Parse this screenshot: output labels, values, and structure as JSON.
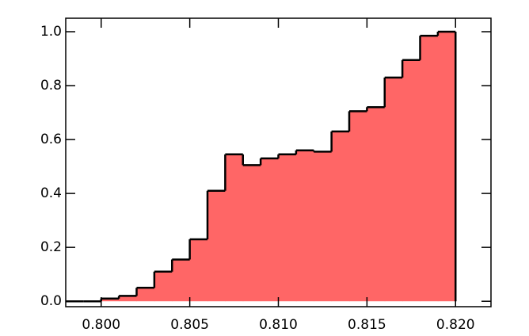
{
  "chart_data": {
    "type": "histogram",
    "color": "#ff6666",
    "edgecolor": "#000000",
    "bins": [
      0.798,
      0.799,
      0.8,
      0.801,
      0.802,
      0.803,
      0.804,
      0.805,
      0.806,
      0.807,
      0.808,
      0.809,
      0.81,
      0.811,
      0.812,
      0.813,
      0.814,
      0.815,
      0.816,
      0.817,
      0.818,
      0.819,
      0.82
    ],
    "values": [
      0.0,
      0.0,
      0.01,
      0.02,
      0.05,
      0.11,
      0.155,
      0.23,
      0.41,
      0.545,
      0.505,
      0.53,
      0.545,
      0.56,
      0.555,
      0.63,
      0.705,
      0.72,
      0.83,
      0.895,
      0.985,
      1.0
    ],
    "xlim": [
      0.798,
      0.822
    ],
    "ylim": [
      -0.02,
      1.05
    ],
    "xticks": [
      {
        "value": 0.8,
        "label": "0.800"
      },
      {
        "value": 0.805,
        "label": "0.805"
      },
      {
        "value": 0.81,
        "label": "0.810"
      },
      {
        "value": 0.815,
        "label": "0.815"
      },
      {
        "value": 0.82,
        "label": "0.820"
      }
    ],
    "yticks": [
      {
        "value": 0,
        "label": "0.0"
      },
      0.2,
      0.4,
      0.6,
      0.8,
      {
        "value": 1,
        "label": "1.0"
      }
    ]
  }
}
